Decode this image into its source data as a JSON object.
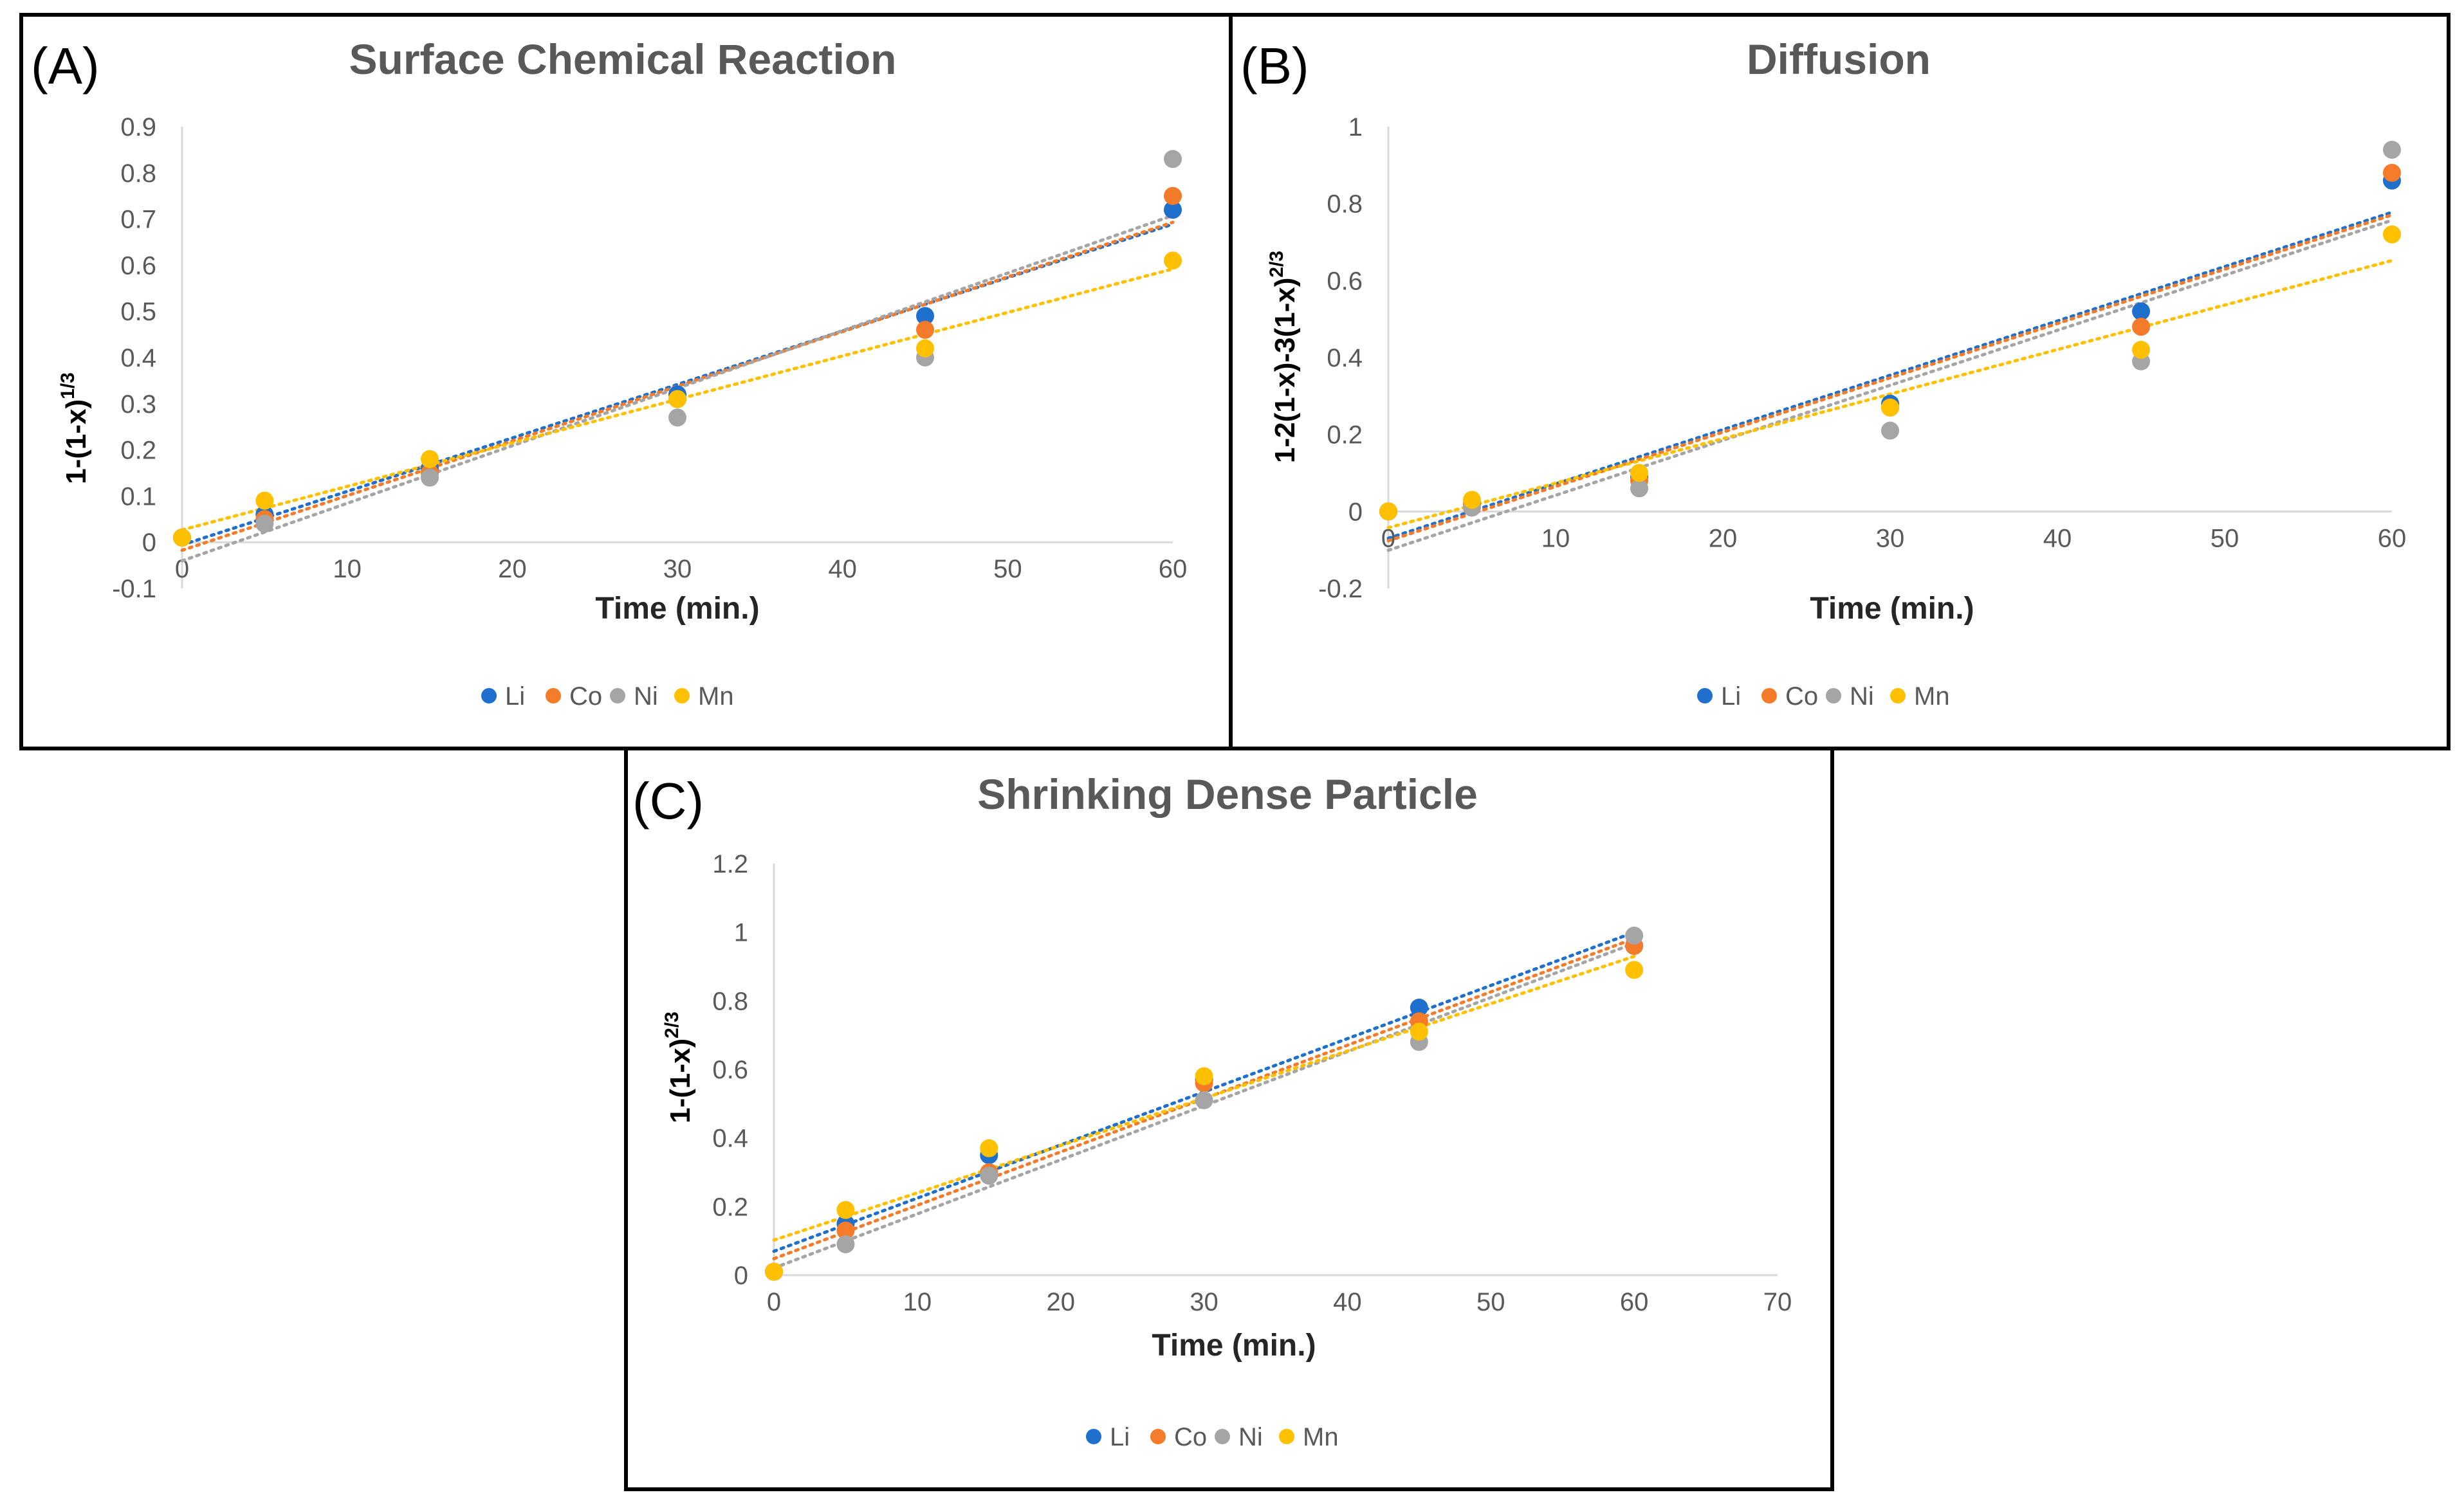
{
  "colors": {
    "Li": "#1f6fcc",
    "Co": "#f47b2a",
    "Ni": "#a5a5a5",
    "Mn": "#ffc000"
  },
  "chart_data": [
    {
      "type": "scatter",
      "panel_label": "(A)",
      "title": "Surface Chemical Reaction",
      "xlabel": "Time (min.)",
      "ylabel_main": "1-(1-x)",
      "ylabel_sup": "1/3",
      "xlim": [
        0,
        60
      ],
      "ylim": [
        -0.1,
        0.9
      ],
      "xticks": [
        0,
        10,
        20,
        30,
        40,
        50,
        60
      ],
      "xtick_labels": [
        "0",
        "10",
        "20",
        "30",
        "40",
        "50",
        "60"
      ],
      "yticks": [
        -0.1,
        0,
        0.1,
        0.2,
        0.3,
        0.4,
        0.5,
        0.6,
        0.7,
        0.8,
        0.9
      ],
      "ytick_labels": [
        "-0.1",
        "0",
        "0.1",
        "0.2",
        "0.3",
        "0.4",
        "0.5",
        "0.6",
        "0.7",
        "0.8",
        "0.9"
      ],
      "trendline": "linear",
      "legend_position": "bottom",
      "x": [
        0,
        5,
        15,
        30,
        45,
        60
      ],
      "series": [
        {
          "name": "Li",
          "values": [
            0.01,
            0.06,
            0.16,
            0.32,
            0.49,
            0.72
          ]
        },
        {
          "name": "Co",
          "values": [
            0.01,
            0.05,
            0.15,
            0.31,
            0.46,
            0.75
          ]
        },
        {
          "name": "Ni",
          "values": [
            0.01,
            0.04,
            0.14,
            0.27,
            0.4,
            0.83
          ]
        },
        {
          "name": "Mn",
          "values": [
            0.01,
            0.09,
            0.18,
            0.31,
            0.42,
            0.61
          ]
        }
      ]
    },
    {
      "type": "scatter",
      "panel_label": "(B)",
      "title": "Diffusion",
      "xlabel": "Time (min.)",
      "ylabel_main": "1-2(1-x)-3(1-x)",
      "ylabel_sup": "2/3",
      "xlim": [
        0,
        60
      ],
      "ylim": [
        -0.2,
        1
      ],
      "xticks": [
        0,
        10,
        20,
        30,
        40,
        50,
        60
      ],
      "xtick_labels": [
        "0",
        "10",
        "20",
        "30",
        "40",
        "50",
        "60"
      ],
      "yticks": [
        -0.2,
        0,
        0.2,
        0.4,
        0.6,
        0.8,
        1
      ],
      "ytick_labels": [
        "-0.2",
        "0",
        "0.2",
        "0.4",
        "0.6",
        "0.8",
        "1"
      ],
      "trendline": "linear",
      "legend_position": "bottom",
      "x": [
        0,
        5,
        15,
        30,
        45,
        60
      ],
      "series": [
        {
          "name": "Li",
          "values": [
            0,
            0.02,
            0.09,
            0.28,
            0.52,
            0.86
          ]
        },
        {
          "name": "Co",
          "values": [
            0,
            0.02,
            0.08,
            0.27,
            0.48,
            0.88
          ]
        },
        {
          "name": "Ni",
          "values": [
            0,
            0.01,
            0.06,
            0.21,
            0.39,
            0.94
          ]
        },
        {
          "name": "Mn",
          "values": [
            0,
            0.03,
            0.1,
            0.27,
            0.42,
            0.72
          ]
        }
      ]
    },
    {
      "type": "scatter",
      "panel_label": "(C)",
      "title": "Shrinking Dense Particle",
      "xlabel": "Time (min.)",
      "ylabel_main": "1-(1-x)",
      "ylabel_sup": "2/3",
      "xlim": [
        0,
        70
      ],
      "ylim": [
        0,
        1.2
      ],
      "xticks": [
        0,
        10,
        20,
        30,
        40,
        50,
        60,
        70
      ],
      "xtick_labels": [
        "0",
        "10",
        "20",
        "30",
        "40",
        "50",
        "60",
        "70"
      ],
      "yticks": [
        0,
        0.2,
        0.4,
        0.6,
        0.8,
        1,
        1.2
      ],
      "ytick_labels": [
        "0",
        "0.2",
        "0.4",
        "0.6",
        "0.8",
        "1",
        "1.2"
      ],
      "trendline": "linear",
      "legend_position": "bottom",
      "x": [
        0,
        5,
        15,
        30,
        45,
        60
      ],
      "series": [
        {
          "name": "Li",
          "values": [
            0.01,
            0.15,
            0.35,
            0.57,
            0.78,
            0.96
          ]
        },
        {
          "name": "Co",
          "values": [
            0.01,
            0.13,
            0.3,
            0.56,
            0.74,
            0.96
          ]
        },
        {
          "name": "Ni",
          "values": [
            0.01,
            0.09,
            0.29,
            0.51,
            0.68,
            0.99
          ]
        },
        {
          "name": "Mn",
          "values": [
            0.01,
            0.19,
            0.37,
            0.58,
            0.71,
            0.89
          ]
        }
      ]
    }
  ]
}
